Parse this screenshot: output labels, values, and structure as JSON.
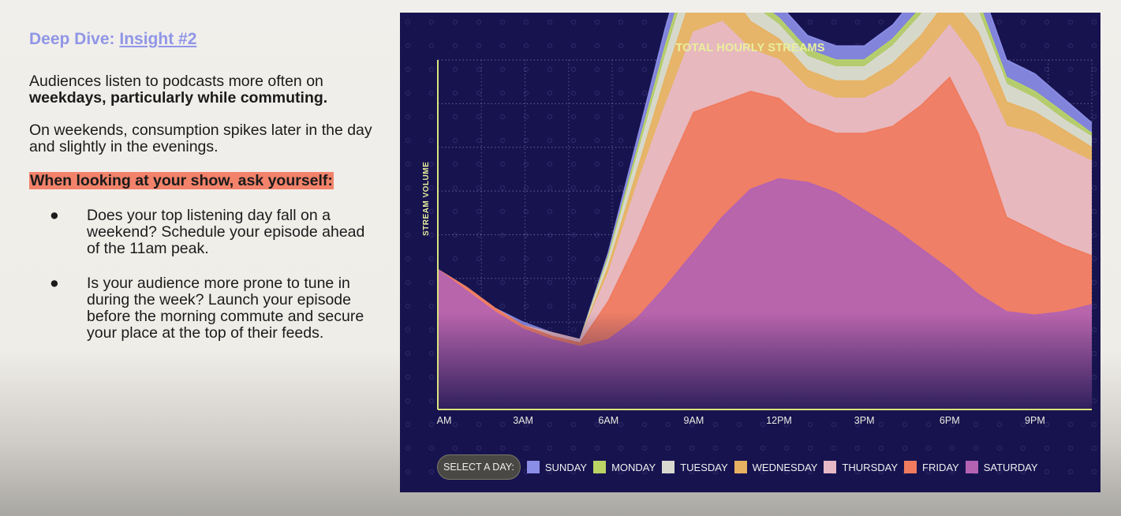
{
  "slide": {
    "title_prefix": "Deep Dive: ",
    "title_link": "Insight #2",
    "para1_text": "Audiences listen to podcasts more often on ",
    "para1_bold": "weekdays, particularly while commuting.",
    "para2": "On weekends, consumption spikes later in the day and slightly in the evenings.",
    "highlight": "When looking at your show, ask yourself:",
    "bullets": [
      {
        "dot": "●",
        "text": "Does your top listening day fall on a weekend? Schedule your episode ahead of the 11am peak."
      },
      {
        "dot": "●",
        "text": "Is your audience more prone to tune in during the week? Launch your episode before the morning commute and secure your place at the top of their feeds."
      }
    ]
  },
  "chart": {
    "select_label": "SELECT A DAY:"
  },
  "chart_data": {
    "type": "area",
    "title": "TOTAL HOURLY STREAMS",
    "ylabel": "STREAM VOLUME",
    "xlabel": "",
    "x_ticks": [
      "AM",
      "3AM",
      "6AM",
      "9AM",
      "12PM",
      "3PM",
      "6PM",
      "9PM"
    ],
    "x": [
      0,
      1,
      2,
      3,
      4,
      5,
      6,
      7,
      8,
      9,
      10,
      11,
      12,
      13,
      14,
      15,
      16,
      17,
      18,
      19,
      20,
      21,
      22,
      23
    ],
    "ylim": [
      0,
      100
    ],
    "grid": true,
    "legend_position": "bottom",
    "series": [
      {
        "name": "SATURDAY",
        "color": "#b463b2",
        "values": [
          40,
          34,
          28,
          23,
          20,
          18,
          20,
          26,
          35,
          45,
          55,
          63,
          66,
          65,
          62,
          57,
          52,
          46,
          40,
          33,
          28,
          27,
          28,
          30
        ]
      },
      {
        "name": "FRIDAY",
        "color": "#f07a5e",
        "values": [
          0,
          1,
          1,
          1,
          1,
          1,
          11,
          22,
          32,
          40,
          33,
          28,
          23,
          17,
          17,
          22,
          29,
          41,
          55,
          46,
          27,
          24,
          19,
          14
        ]
      },
      {
        "name": "THURSDAY",
        "color": "#e7b8c6",
        "values": [
          0,
          0,
          0,
          0,
          1,
          1,
          8,
          16,
          20,
          23,
          23,
          12,
          11,
          10,
          10,
          10,
          12,
          13,
          15,
          20,
          26,
          28,
          28,
          27
        ]
      },
      {
        "name": "WEDNESDAY",
        "color": "#e7b262",
        "values": [
          0,
          0,
          0,
          0,
          0,
          0,
          2,
          4,
          8,
          12,
          11,
          8,
          6,
          5,
          5,
          5,
          6,
          7,
          8,
          9,
          7,
          6,
          5,
          4
        ]
      },
      {
        "name": "TUESDAY",
        "color": "#d9d9d0",
        "values": [
          0,
          0,
          0,
          0,
          0,
          0,
          2,
          4,
          6,
          8,
          7,
          5,
          4,
          4,
          4,
          4,
          5,
          6,
          6,
          6,
          5,
          4,
          3,
          3
        ]
      },
      {
        "name": "MONDAY",
        "color": "#b9d365",
        "values": [
          0,
          0,
          0,
          0,
          0,
          0,
          1,
          2,
          3,
          3,
          3,
          2,
          2,
          2,
          2,
          2,
          2,
          2,
          3,
          3,
          2,
          2,
          2,
          1
        ]
      },
      {
        "name": "SUNDAY",
        "color": "#8b8ee6",
        "values": [
          0,
          0,
          0,
          1,
          0,
          0,
          1,
          3,
          5,
          6,
          6,
          5,
          4,
          4,
          4,
          4,
          4,
          5,
          6,
          6,
          5,
          5,
          4,
          3
        ]
      }
    ]
  }
}
